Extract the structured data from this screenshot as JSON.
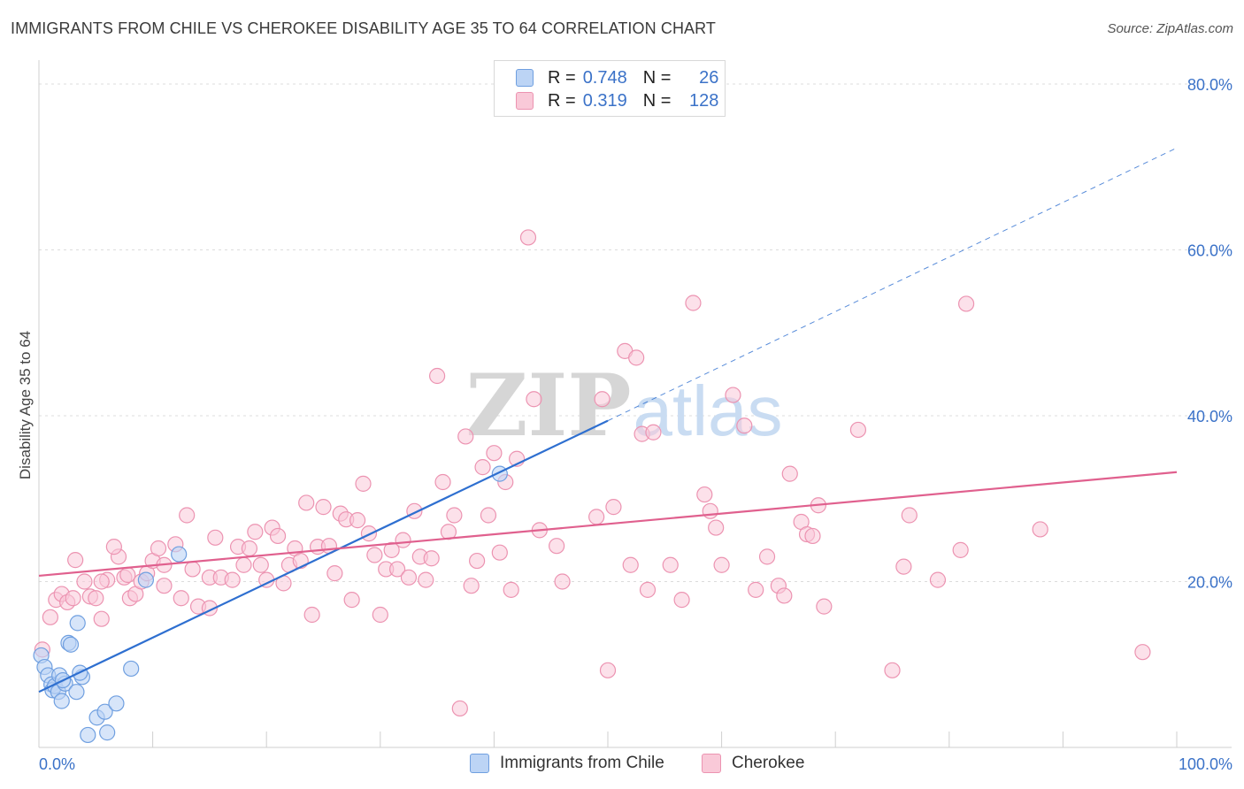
{
  "header": {
    "title": "IMMIGRANTS FROM CHILE VS CHEROKEE DISABILITY AGE 35 TO 64 CORRELATION CHART",
    "source": "Source: ZipAtlas.com"
  },
  "legend": {
    "r_label": "R =",
    "n_label": "N =",
    "series": [
      {
        "r": "0.748",
        "n": "26"
      },
      {
        "r": "0.319",
        "n": "128"
      }
    ]
  },
  "watermark": {
    "zip": "ZIP",
    "atlas": "atlas"
  },
  "colors": {
    "chile_fill": "#bcd4f5",
    "chile_stroke": "#6f9fe0",
    "chile_line": "#2e6fd0",
    "cherokee_fill": "#f9c9d8",
    "cherokee_stroke": "#ec93b1",
    "cherokee_line": "#e0608e",
    "axis_text": "#3b72c8"
  },
  "chart_data": {
    "type": "scatter",
    "title": "IMMIGRANTS FROM CHILE VS CHEROKEE DISABILITY AGE 35 TO 64 CORRELATION CHART",
    "xlabel": "",
    "ylabel": "Disability Age 35 to 64",
    "xlim": [
      0,
      100
    ],
    "ylim": [
      0,
      80
    ],
    "x_tick_labels": [
      {
        "value": 0,
        "label": "0.0%"
      },
      {
        "value": 100,
        "label": "100.0%"
      }
    ],
    "y_tick_labels": [
      {
        "value": 80,
        "label": "80.0%"
      },
      {
        "value": 60,
        "label": "60.0%"
      },
      {
        "value": 40,
        "label": "40.0%"
      },
      {
        "value": 20,
        "label": "20.0%"
      }
    ],
    "grid": true,
    "legend_position": "top-center",
    "series": [
      {
        "name": "Immigrants from Chile",
        "R": 0.748,
        "N": 26,
        "trend": {
          "x0": 0,
          "y0": 6.7,
          "x1": 50,
          "y1": 39.4,
          "dashed_to": 100,
          "dashed_y": 72.3
        },
        "points": [
          [
            0.2,
            11.1
          ],
          [
            0.5,
            9.7
          ],
          [
            0.8,
            8.7
          ],
          [
            1.1,
            7.6
          ],
          [
            1.2,
            6.9
          ],
          [
            1.4,
            7.4
          ],
          [
            1.8,
            8.7
          ],
          [
            1.7,
            6.7
          ],
          [
            2.0,
            5.6
          ],
          [
            2.3,
            7.7
          ],
          [
            2.6,
            12.6
          ],
          [
            2.8,
            12.4
          ],
          [
            3.3,
            6.7
          ],
          [
            3.4,
            15.0
          ],
          [
            3.8,
            8.5
          ],
          [
            4.3,
            1.5
          ],
          [
            5.1,
            3.6
          ],
          [
            5.8,
            4.3
          ],
          [
            6.0,
            1.8
          ],
          [
            6.8,
            5.3
          ],
          [
            8.1,
            9.5
          ],
          [
            9.4,
            20.2
          ],
          [
            12.3,
            23.3
          ],
          [
            40.5,
            33.0
          ],
          [
            2.1,
            8.1
          ],
          [
            3.6,
            9.0
          ]
        ]
      },
      {
        "name": "Cherokee",
        "R": 0.319,
        "N": 128,
        "trend": {
          "x0": 0,
          "y0": 20.7,
          "x1": 100,
          "y1": 33.2
        },
        "points": [
          [
            0.3,
            11.8
          ],
          [
            1.0,
            15.7
          ],
          [
            1.5,
            17.8
          ],
          [
            2.0,
            18.5
          ],
          [
            2.5,
            17.5
          ],
          [
            3.0,
            18.0
          ],
          [
            4.0,
            20.0
          ],
          [
            4.5,
            18.2
          ],
          [
            5.0,
            18.0
          ],
          [
            5.5,
            15.5
          ],
          [
            6.0,
            20.2
          ],
          [
            7.0,
            23.0
          ],
          [
            7.5,
            20.5
          ],
          [
            8.0,
            18.0
          ],
          [
            8.5,
            18.5
          ],
          [
            9.0,
            20.0
          ],
          [
            9.5,
            21.0
          ],
          [
            10.0,
            22.5
          ],
          [
            10.5,
            24.0
          ],
          [
            11.0,
            19.5
          ],
          [
            12.0,
            24.5
          ],
          [
            12.5,
            18.0
          ],
          [
            13.0,
            28.0
          ],
          [
            13.5,
            21.5
          ],
          [
            14.0,
            17.0
          ],
          [
            15.0,
            20.5
          ],
          [
            15.5,
            25.3
          ],
          [
            16.0,
            20.5
          ],
          [
            17.0,
            20.2
          ],
          [
            17.5,
            24.2
          ],
          [
            18.0,
            22.0
          ],
          [
            18.5,
            24.0
          ],
          [
            19.0,
            26.0
          ],
          [
            19.5,
            22.0
          ],
          [
            20.0,
            20.2
          ],
          [
            20.5,
            26.5
          ],
          [
            21.0,
            25.5
          ],
          [
            21.5,
            19.8
          ],
          [
            22.0,
            22.0
          ],
          [
            22.5,
            24.0
          ],
          [
            23.0,
            22.5
          ],
          [
            23.5,
            29.5
          ],
          [
            24.0,
            16.0
          ],
          [
            24.5,
            24.2
          ],
          [
            25.0,
            29.0
          ],
          [
            25.5,
            24.3
          ],
          [
            26.0,
            21.0
          ],
          [
            26.5,
            28.2
          ],
          [
            27.0,
            27.5
          ],
          [
            28.0,
            27.4
          ],
          [
            28.5,
            31.8
          ],
          [
            29.0,
            25.8
          ],
          [
            29.5,
            23.2
          ],
          [
            30.0,
            16.0
          ],
          [
            30.5,
            21.5
          ],
          [
            31.0,
            23.8
          ],
          [
            31.5,
            21.5
          ],
          [
            32.0,
            25.0
          ],
          [
            32.5,
            20.5
          ],
          [
            33.0,
            28.5
          ],
          [
            33.5,
            23.0
          ],
          [
            34.5,
            22.8
          ],
          [
            35.0,
            44.8
          ],
          [
            35.5,
            32.0
          ],
          [
            36.0,
            26.0
          ],
          [
            36.5,
            28.0
          ],
          [
            37.0,
            4.7
          ],
          [
            37.5,
            37.5
          ],
          [
            38.0,
            19.5
          ],
          [
            38.5,
            22.5
          ],
          [
            39.0,
            33.8
          ],
          [
            39.5,
            28.0
          ],
          [
            40.0,
            35.5
          ],
          [
            40.5,
            23.5
          ],
          [
            41.0,
            32.0
          ],
          [
            41.5,
            19.0
          ],
          [
            42.0,
            34.8
          ],
          [
            43.0,
            61.5
          ],
          [
            43.5,
            42.0
          ],
          [
            44.0,
            26.2
          ],
          [
            45.5,
            24.3
          ],
          [
            46.0,
            20.0
          ],
          [
            49.0,
            27.8
          ],
          [
            49.5,
            42.0
          ],
          [
            50.0,
            9.3
          ],
          [
            50.5,
            29.0
          ],
          [
            51.5,
            47.8
          ],
          [
            52.0,
            22.0
          ],
          [
            52.5,
            47.0
          ],
          [
            53.0,
            37.8
          ],
          [
            53.5,
            19.0
          ],
          [
            54.0,
            38.0
          ],
          [
            55.5,
            22.0
          ],
          [
            56.5,
            17.8
          ],
          [
            57.5,
            53.6
          ],
          [
            58.5,
            30.5
          ],
          [
            59.0,
            28.5
          ],
          [
            59.5,
            26.5
          ],
          [
            60.0,
            22.0
          ],
          [
            61.0,
            42.5
          ],
          [
            62.0,
            38.8
          ],
          [
            63.0,
            19.0
          ],
          [
            64.0,
            23.0
          ],
          [
            65.0,
            19.5
          ],
          [
            65.5,
            18.3
          ],
          [
            66.0,
            33.0
          ],
          [
            67.0,
            27.2
          ],
          [
            67.5,
            25.7
          ],
          [
            68.0,
            25.5
          ],
          [
            68.5,
            29.2
          ],
          [
            69.0,
            17.0
          ],
          [
            72.0,
            38.3
          ],
          [
            75.0,
            9.3
          ],
          [
            76.0,
            21.8
          ],
          [
            76.5,
            28.0
          ],
          [
            79.0,
            20.2
          ],
          [
            81.0,
            23.8
          ],
          [
            81.5,
            53.5
          ],
          [
            88.0,
            26.3
          ],
          [
            97.0,
            11.5
          ],
          [
            15.0,
            16.8
          ],
          [
            34.0,
            20.2
          ],
          [
            5.5,
            20.0
          ],
          [
            7.8,
            20.8
          ],
          [
            11.0,
            22.0
          ],
          [
            6.6,
            24.2
          ],
          [
            3.2,
            22.6
          ],
          [
            27.5,
            17.8
          ]
        ]
      }
    ]
  },
  "bottom_legend": {
    "items": [
      {
        "label": "Immigrants from Chile"
      },
      {
        "label": "Cherokee"
      }
    ]
  }
}
